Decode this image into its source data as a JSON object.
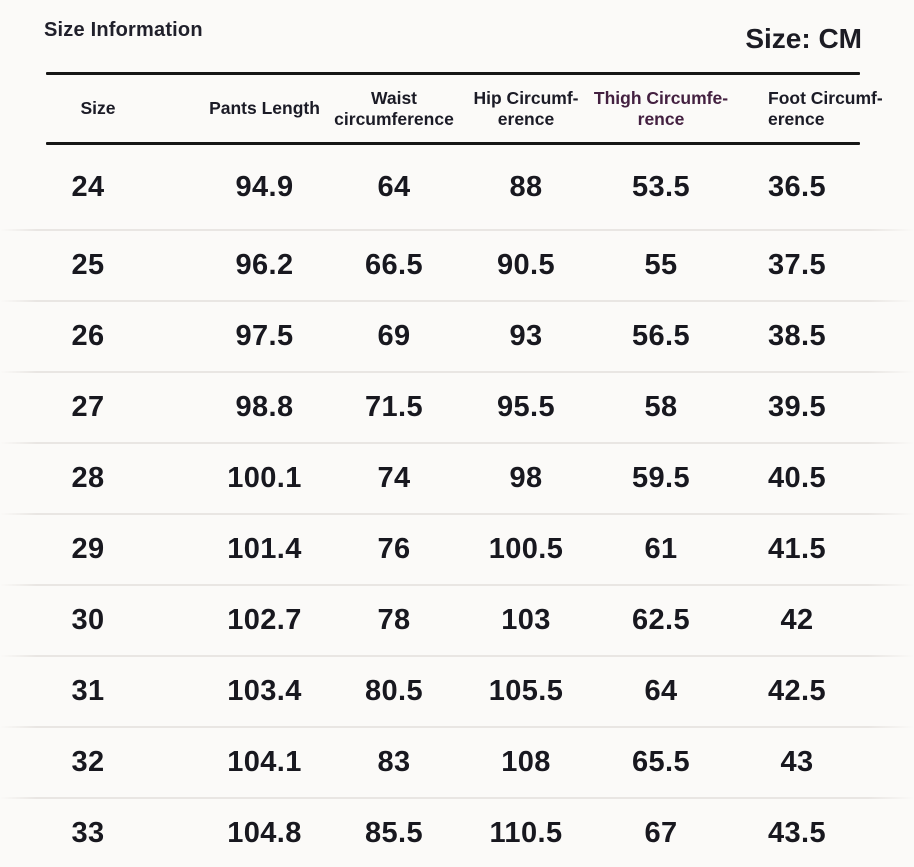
{
  "header": {
    "title": "Size Information",
    "unit_label": "Size: CM"
  },
  "table": {
    "columns": [
      {
        "label": "Size",
        "line1": "Size",
        "line2": ""
      },
      {
        "label": "Pants Length",
        "line1": "Pants Length",
        "line2": ""
      },
      {
        "label": "Waist circumference",
        "line1": "Waist",
        "line2": "circumference"
      },
      {
        "label": "Hip Circumference",
        "line1": "Hip Circumf-",
        "line2": "erence"
      },
      {
        "label": "Thigh Circumference",
        "line1": "Thigh Circumfe-",
        "line2": "rence"
      },
      {
        "label": "Foot Circumference",
        "line1": "Foot Circumf-",
        "line2": "erence"
      }
    ],
    "rows": [
      [
        "24",
        "94.9",
        "64",
        "88",
        "53.5",
        "36.5"
      ],
      [
        "25",
        "96.2",
        "66.5",
        "90.5",
        "55",
        "37.5"
      ],
      [
        "26",
        "97.5",
        "69",
        "93",
        "56.5",
        "38.5"
      ],
      [
        "27",
        "98.8",
        "71.5",
        "95.5",
        "58",
        "39.5"
      ],
      [
        "28",
        "100.1",
        "74",
        "98",
        "59.5",
        "40.5"
      ],
      [
        "29",
        "101.4",
        "76",
        "100.5",
        "61",
        "41.5"
      ],
      [
        "30",
        "102.7",
        "78",
        "103",
        "62.5",
        "42"
      ],
      [
        "31",
        "103.4",
        "80.5",
        "105.5",
        "64",
        "42.5"
      ],
      [
        "32",
        "104.1",
        "83",
        "108",
        "65.5",
        "43"
      ],
      [
        "33",
        "104.8",
        "85.5",
        "110.5",
        "67",
        "43.5"
      ]
    ]
  },
  "chart_data": {
    "type": "table",
    "title": "Size Information",
    "unit": "CM",
    "columns": [
      "Size",
      "Pants Length",
      "Waist circumference",
      "Hip Circumference",
      "Thigh Circumference",
      "Foot Circumference"
    ],
    "rows": [
      [
        24,
        94.9,
        64,
        88,
        53.5,
        36.5
      ],
      [
        25,
        96.2,
        66.5,
        90.5,
        55,
        37.5
      ],
      [
        26,
        97.5,
        69,
        93,
        56.5,
        38.5
      ],
      [
        27,
        98.8,
        71.5,
        95.5,
        58,
        39.5
      ],
      [
        28,
        100.1,
        74,
        98,
        59.5,
        40.5
      ],
      [
        29,
        101.4,
        76,
        100.5,
        61,
        41.5
      ],
      [
        30,
        102.7,
        78,
        103,
        62.5,
        42
      ],
      [
        31,
        103.4,
        80.5,
        105.5,
        64,
        42.5
      ],
      [
        32,
        104.1,
        83,
        108,
        65.5,
        43
      ],
      [
        33,
        104.8,
        85.5,
        110.5,
        67,
        43.5
      ]
    ]
  },
  "colors": {
    "background": "#fbfaf8",
    "header_text": "#1b1b26",
    "thigh_header_text": "#432040",
    "data_text": "#18181f",
    "header_rule": "#161616",
    "row_separator": "#e9e6e3"
  }
}
